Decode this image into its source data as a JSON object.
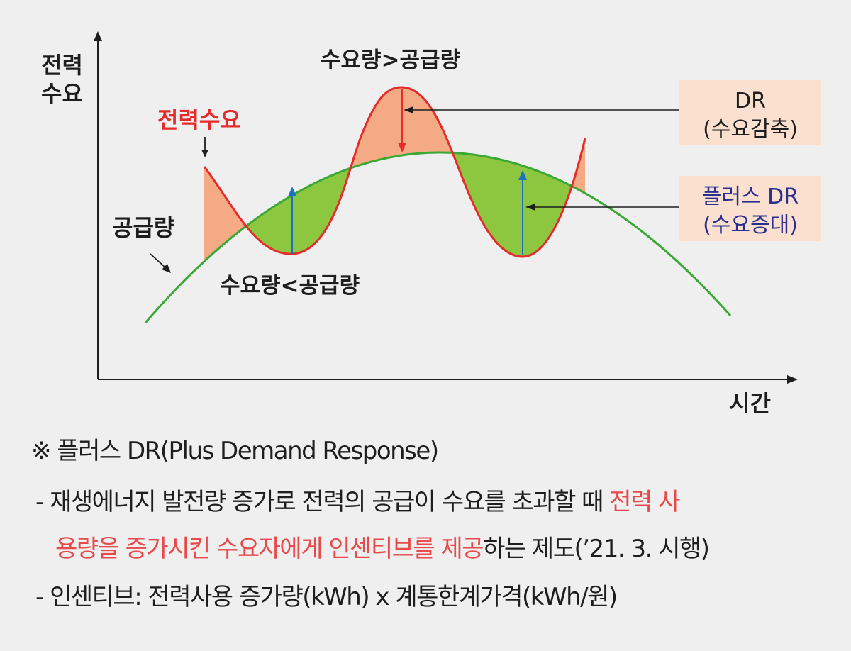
{
  "axes": {
    "y_label_line1": "전력",
    "y_label_line2": "수요",
    "x_label": "시간"
  },
  "curves": {
    "demand_label": "전력수요",
    "supply_label": "공급량",
    "demand_color": "#e52b2b",
    "supply_color": "#3aa835"
  },
  "annotations": {
    "peak_label": "수요량>공급량",
    "trough_label": "수요량<공급량"
  },
  "callouts": {
    "dr": {
      "title": "DR",
      "subtitle": "(수요감축)",
      "text_color": "#1e1e1e",
      "bg": "#fbe0d0"
    },
    "plus_dr": {
      "title": "플러스 DR",
      "subtitle": "(수요증대)",
      "text_color": "#2a2f8f",
      "bg": "#fbe0d0"
    }
  },
  "fills": {
    "reduction": "#f4aa82",
    "increase": "#8dc63f",
    "up_arrow": "#1f6fbf",
    "down_arrow": "#e52b2b"
  },
  "notes": {
    "title": "※ 플러스 DR(Plus Demand Response)",
    "line1_prefix": "- 재생에너지 발전량 증가로 전력의 공급이 수요를 초과할 때 ",
    "line1_highlight": "전력 사",
    "line2_highlight": "용량을 증가시킨 수요자에게 인센티브를 제공",
    "line2_suffix": "하는 제도(’21. 3. 시행)",
    "line3": "- 인센티브: 전력사용 증가량(kWh) x 계통한계가격(kWh/원)"
  }
}
